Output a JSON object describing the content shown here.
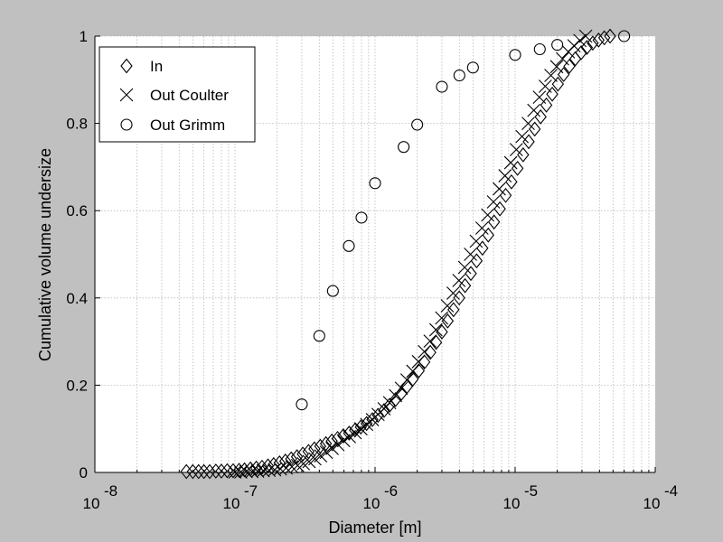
{
  "chart_data": {
    "type": "scatter",
    "title": "",
    "xlabel": "Diameter [m]",
    "ylabel": "Cumulative volume undersize",
    "xscale": "log",
    "xlim": [
      1e-08,
      0.0001
    ],
    "ylim": [
      0,
      1
    ],
    "grid": true,
    "legend_position": "top-left",
    "x_tick_labels": [
      {
        "base": "10",
        "exp": "-8",
        "value": 1e-08
      },
      {
        "base": "10",
        "exp": "-7",
        "value": 1e-07
      },
      {
        "base": "10",
        "exp": "-6",
        "value": 1e-06
      },
      {
        "base": "10",
        "exp": "-5",
        "value": 1e-05
      },
      {
        "base": "10",
        "exp": "-4",
        "value": 0.0001
      }
    ],
    "y_tick_labels": [
      "0",
      "0.2",
      "0.4",
      "0.6",
      "0.8",
      "1"
    ],
    "y_ticks": [
      0,
      0.2,
      0.4,
      0.6,
      0.8,
      1
    ],
    "series": [
      {
        "name": "In",
        "marker": "diamond",
        "color": "#000000",
        "x": [
          4.5e-08,
          5e-08,
          5.5e-08,
          6e-08,
          6.6e-08,
          7.3e-08,
          8e-08,
          8.8e-08,
          9.7e-08,
          1.07e-07,
          1.17e-07,
          1.29e-07,
          1.42e-07,
          1.56e-07,
          1.72e-07,
          1.89e-07,
          2.08e-07,
          2.29e-07,
          2.52e-07,
          2.77e-07,
          3.05e-07,
          3.35e-07,
          3.69e-07,
          4.06e-07,
          4.46e-07,
          4.91e-07,
          5.4e-07,
          5.94e-07,
          6.53e-07,
          7.19e-07,
          7.91e-07,
          8.7e-07,
          9.57e-07,
          1.05e-06,
          1.16e-06,
          1.27e-06,
          1.4e-06,
          1.54e-06,
          1.69e-06,
          1.86e-06,
          2.05e-06,
          2.25e-06,
          2.48e-06,
          2.73e-06,
          3e-06,
          3.3e-06,
          3.63e-06,
          3.99e-06,
          4.39e-06,
          4.83e-06,
          5.31e-06,
          5.84e-06,
          6.43e-06,
          7.07e-06,
          7.78e-06,
          8.56e-06,
          9.41e-06,
          1.04e-05,
          1.14e-05,
          1.25e-05,
          1.38e-05,
          1.52e-05,
          1.67e-05,
          1.84e-05,
          2.02e-05,
          2.22e-05,
          2.44e-05,
          2.69e-05,
          2.96e-05,
          3.25e-05,
          3.58e-05,
          3.94e-05,
          4.33e-05,
          4.76e-05
        ],
        "y": [
          0.002,
          0.002,
          0.002,
          0.002,
          0.002,
          0.003,
          0.003,
          0.004,
          0.004,
          0.005,
          0.006,
          0.008,
          0.01,
          0.012,
          0.015,
          0.018,
          0.022,
          0.026,
          0.031,
          0.036,
          0.042,
          0.048,
          0.054,
          0.06,
          0.066,
          0.072,
          0.078,
          0.084,
          0.09,
          0.097,
          0.104,
          0.112,
          0.121,
          0.131,
          0.142,
          0.154,
          0.167,
          0.181,
          0.197,
          0.214,
          0.233,
          0.253,
          0.275,
          0.298,
          0.322,
          0.347,
          0.373,
          0.4,
          0.428,
          0.456,
          0.485,
          0.514,
          0.544,
          0.574,
          0.604,
          0.635,
          0.666,
          0.697,
          0.728,
          0.758,
          0.787,
          0.815,
          0.842,
          0.867,
          0.89,
          0.912,
          0.931,
          0.948,
          0.962,
          0.974,
          0.984,
          0.991,
          0.996,
          1.0
        ]
      },
      {
        "name": "Out Coulter",
        "marker": "x",
        "color": "#000000",
        "x": [
          1e-07,
          1.1e-07,
          1.2e-07,
          1.32e-07,
          1.45e-07,
          1.59e-07,
          1.75e-07,
          1.92e-07,
          2.11e-07,
          2.32e-07,
          2.55e-07,
          2.8e-07,
          3.08e-07,
          3.38e-07,
          3.72e-07,
          4.09e-07,
          4.49e-07,
          4.94e-07,
          5.43e-07,
          5.97e-07,
          6.56e-07,
          7.21e-07,
          7.93e-07,
          8.72e-07,
          9.58e-07,
          1.05e-06,
          1.16e-06,
          1.27e-06,
          1.4e-06,
          1.54e-06,
          1.69e-06,
          1.86e-06,
          2.04e-06,
          2.25e-06,
          2.47e-06,
          2.72e-06,
          2.99e-06,
          3.28e-06,
          3.61e-06,
          3.97e-06,
          4.36e-06,
          4.8e-06,
          5.27e-06,
          5.8e-06,
          6.37e-06,
          7e-06,
          7.7e-06,
          8.46e-06,
          9.3e-06,
          1.02e-05,
          1.12e-05,
          1.24e-05,
          1.36e-05,
          1.49e-05,
          1.64e-05,
          1.8e-05,
          1.98e-05,
          2.18e-05,
          2.4e-05,
          2.63e-05,
          2.9e-05,
          3.19e-05
        ],
        "y": [
          0.001,
          0.001,
          0.002,
          0.002,
          0.003,
          0.004,
          0.005,
          0.006,
          0.008,
          0.01,
          0.013,
          0.016,
          0.02,
          0.025,
          0.031,
          0.038,
          0.046,
          0.055,
          0.064,
          0.073,
          0.082,
          0.091,
          0.1,
          0.11,
          0.121,
          0.133,
          0.146,
          0.16,
          0.176,
          0.193,
          0.212,
          0.232,
          0.254,
          0.277,
          0.301,
          0.327,
          0.354,
          0.382,
          0.411,
          0.44,
          0.47,
          0.5,
          0.53,
          0.56,
          0.59,
          0.62,
          0.65,
          0.68,
          0.71,
          0.74,
          0.77,
          0.8,
          0.83,
          0.86,
          0.885,
          0.91,
          0.93,
          0.948,
          0.964,
          0.978,
          0.99,
          1.0
        ]
      },
      {
        "name": "Out Grimm",
        "marker": "circle",
        "color": "#000000",
        "x": [
          3e-07,
          4e-07,
          5e-07,
          6.5e-07,
          8e-07,
          1e-06,
          1.6e-06,
          2e-06,
          3e-06,
          4e-06,
          5e-06,
          1e-05,
          1.5e-05,
          2e-05,
          6e-05
        ],
        "y": [
          0.156,
          0.313,
          0.416,
          0.519,
          0.584,
          0.663,
          0.746,
          0.797,
          0.884,
          0.91,
          0.928,
          0.957,
          0.97,
          0.98,
          1.0
        ]
      }
    ]
  }
}
